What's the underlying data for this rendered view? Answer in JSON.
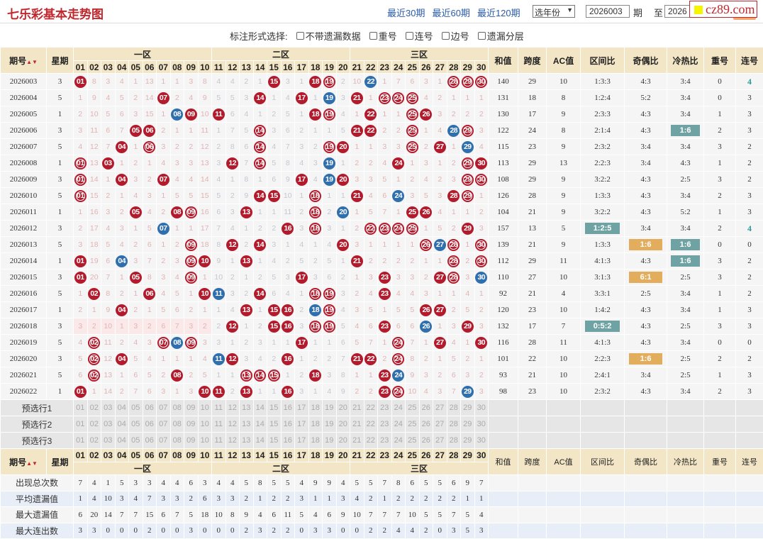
{
  "header": {
    "title": "七乐彩基本走势图",
    "links": [
      "最近30期",
      "最近60期",
      "最近120期"
    ],
    "year_select": "选年份",
    "from_value": "2026003",
    "from_suffix": "期",
    "to_label": "至",
    "to_value": "2026",
    "watermark": "cz89.com"
  },
  "options": {
    "label": "标注形式选择:",
    "items": [
      "不带遗漏数据",
      "重号",
      "连号",
      "边号",
      "遗漏分层"
    ]
  },
  "columns": {
    "period": "期号",
    "week": "星期",
    "zones": [
      "一区",
      "二区",
      "三区"
    ],
    "numbers": [
      "01",
      "02",
      "03",
      "04",
      "05",
      "06",
      "07",
      "08",
      "09",
      "10",
      "11",
      "12",
      "13",
      "14",
      "15",
      "16",
      "17",
      "18",
      "19",
      "20",
      "21",
      "22",
      "23",
      "24",
      "25",
      "26",
      "27",
      "28",
      "29",
      "30"
    ],
    "stats": [
      "和值",
      "跨度",
      "AC值",
      "区间比",
      "奇偶比",
      "冷热比",
      "重号",
      "连号"
    ]
  },
  "colors": {
    "red_ball": "#b31b2c",
    "blue_ball": "#2f6fae",
    "teal_highlight": "#6fa3a3",
    "orange_highlight": "#e3ad5e",
    "header_bg": "#f3e6c6"
  },
  "rows": [
    {
      "period": "2026003",
      "week": "3",
      "cells": [
        "r01",
        "8",
        "3",
        "4",
        "1",
        "13",
        "1",
        "1",
        "3",
        "8",
        "4",
        "4",
        "2",
        "1",
        "r15",
        "3",
        "1",
        "r18",
        "o19",
        "2",
        "10",
        "b22",
        "1",
        "7",
        "6",
        "3",
        "1",
        "o28",
        "o29",
        "o30"
      ],
      "stats": [
        "140",
        "29",
        "10",
        "1:3:3",
        "4:3",
        "3:4",
        "0",
        "4"
      ],
      "hl": {
        "7": "tealtxt"
      }
    },
    {
      "period": "2026004",
      "week": "5",
      "cells": [
        "1",
        "9",
        "4",
        "5",
        "2",
        "14",
        "r07",
        "2",
        "4",
        "9",
        "5",
        "5",
        "3",
        "r14",
        "1",
        "4",
        "r17",
        "1",
        "b19",
        "3",
        "r21",
        "1",
        "o23",
        "o24",
        "o25",
        "4",
        "2",
        "1",
        "1",
        "1"
      ],
      "stats": [
        "131",
        "18",
        "8",
        "1:2:4",
        "5:2",
        "3:4",
        "0",
        "3"
      ]
    },
    {
      "period": "2026005",
      "week": "1",
      "cells": [
        "2",
        "10",
        "5",
        "6",
        "3",
        "15",
        "1",
        "b08",
        "r09",
        "10",
        "r11",
        "6",
        "4",
        "1",
        "2",
        "5",
        "1",
        "r18",
        "o19",
        "4",
        "1",
        "r22",
        "1",
        "1",
        "o25",
        "r26",
        "3",
        "2",
        "2",
        "2"
      ],
      "stats": [
        "130",
        "17",
        "9",
        "2:3:3",
        "4:3",
        "3:4",
        "1",
        "3"
      ]
    },
    {
      "period": "2026006",
      "week": "3",
      "cells": [
        "3",
        "11",
        "6",
        "7",
        "r05",
        "r06",
        "2",
        "1",
        "1",
        "11",
        "1",
        "7",
        "5",
        "o14",
        "3",
        "6",
        "2",
        "1",
        "1",
        "5",
        "r21",
        "r22",
        "2",
        "2",
        "o25",
        "1",
        "4",
        "b28",
        "o29",
        "3"
      ],
      "stats": [
        "122",
        "24",
        "8",
        "2:1:4",
        "4:3",
        "1:6",
        "2",
        "3"
      ],
      "hl": {
        "5": "teal"
      }
    },
    {
      "period": "2026007",
      "week": "5",
      "cells": [
        "4",
        "12",
        "7",
        "r04",
        "1",
        "o06",
        "3",
        "2",
        "2",
        "12",
        "2",
        "8",
        "6",
        "o14",
        "4",
        "7",
        "3",
        "2",
        "o19",
        "r20",
        "1",
        "1",
        "3",
        "3",
        "o25",
        "2",
        "r27",
        "1",
        "b29",
        "4"
      ],
      "stats": [
        "115",
        "23",
        "9",
        "2:3:2",
        "3:4",
        "3:4",
        "3",
        "2"
      ]
    },
    {
      "period": "2026008",
      "week": "1",
      "cells": [
        "o01",
        "13",
        "r03",
        "1",
        "2",
        "1",
        "4",
        "3",
        "3",
        "13",
        "3",
        "r12",
        "7",
        "o14",
        "5",
        "8",
        "4",
        "3",
        "b19",
        "1",
        "2",
        "2",
        "4",
        "r24",
        "1",
        "3",
        "1",
        "2",
        "o29",
        "r30"
      ],
      "stats": [
        "113",
        "29",
        "13",
        "2:2:3",
        "3:4",
        "4:3",
        "1",
        "2"
      ]
    },
    {
      "period": "2026009",
      "week": "3",
      "cells": [
        "o01",
        "14",
        "1",
        "r04",
        "3",
        "2",
        "r07",
        "4",
        "4",
        "14",
        "4",
        "1",
        "8",
        "1",
        "6",
        "9",
        "r17",
        "4",
        "b19",
        "r20",
        "3",
        "3",
        "5",
        "1",
        "2",
        "4",
        "2",
        "3",
        "o29",
        "o30"
      ],
      "stats": [
        "108",
        "29",
        "9",
        "3:2:2",
        "4:3",
        "2:5",
        "3",
        "2"
      ]
    },
    {
      "period": "2026010",
      "week": "5",
      "cells": [
        "o01",
        "15",
        "2",
        "1",
        "4",
        "3",
        "1",
        "5",
        "5",
        "15",
        "5",
        "2",
        "9",
        "r14",
        "r15",
        "10",
        "1",
        "o18",
        "1",
        "1",
        "r21",
        "4",
        "6",
        "b24",
        "3",
        "5",
        "3",
        "r28",
        "o29",
        "1"
      ],
      "stats": [
        "126",
        "28",
        "9",
        "1:3:3",
        "4:3",
        "3:4",
        "2",
        "3"
      ]
    },
    {
      "period": "2026011",
      "week": "1",
      "cells": [
        "1",
        "16",
        "3",
        "2",
        "r05",
        "4",
        "2",
        "r08",
        "o09",
        "16",
        "6",
        "3",
        "r13",
        "1",
        "1",
        "11",
        "2",
        "o18",
        "2",
        "b20",
        "1",
        "5",
        "7",
        "1",
        "r25",
        "r26",
        "4",
        "1",
        "1",
        "2"
      ],
      "stats": [
        "104",
        "21",
        "9",
        "3:2:2",
        "4:3",
        "5:2",
        "1",
        "3"
      ]
    },
    {
      "period": "2026012",
      "week": "3",
      "cells": [
        "2",
        "17",
        "4",
        "3",
        "1",
        "5",
        "b07",
        "1",
        "1",
        "17",
        "7",
        "4",
        "1",
        "2",
        "2",
        "r16",
        "3",
        "o18",
        "3",
        "1",
        "2",
        "o22",
        "o23",
        "o24",
        "o25",
        "1",
        "5",
        "2",
        "r29",
        "3"
      ],
      "stats": [
        "157",
        "13",
        "5",
        "1:2:5",
        "3:4",
        "3:4",
        "2",
        "4"
      ],
      "hl": {
        "3": "teal",
        "7": "tealtxt"
      }
    },
    {
      "period": "2026013",
      "week": "5",
      "cells": [
        "3",
        "18",
        "5",
        "4",
        "2",
        "6",
        "1",
        "2",
        "o09",
        "18",
        "8",
        "r12",
        "2",
        "r14",
        "3",
        "1",
        "4",
        "1",
        "4",
        "r20",
        "3",
        "1",
        "1",
        "1",
        "1",
        "o26",
        "b27",
        "o28",
        "1",
        "o30"
      ],
      "stats": [
        "139",
        "21",
        "9",
        "1:3:3",
        "1:6",
        "1:6",
        "0",
        "0"
      ],
      "hl": {
        "4": "orange",
        "5": "teal"
      }
    },
    {
      "period": "2026014",
      "week": "1",
      "cells": [
        "r01",
        "19",
        "6",
        "b04",
        "3",
        "7",
        "2",
        "3",
        "o09",
        "r10",
        "9",
        "1",
        "r13",
        "1",
        "4",
        "2",
        "5",
        "2",
        "5",
        "1",
        "r21",
        "2",
        "2",
        "2",
        "2",
        "1",
        "1",
        "o28",
        "2",
        "o30"
      ],
      "stats": [
        "112",
        "29",
        "11",
        "4:1:3",
        "4:3",
        "1:6",
        "3",
        "2"
      ],
      "hl": {
        "5": "teal"
      }
    },
    {
      "period": "2026015",
      "week": "3",
      "cells": [
        "r01",
        "20",
        "7",
        "1",
        "r05",
        "8",
        "3",
        "4",
        "o09",
        "1",
        "10",
        "2",
        "1",
        "2",
        "5",
        "3",
        "r17",
        "3",
        "6",
        "2",
        "1",
        "3",
        "r23",
        "3",
        "3",
        "2",
        "r27",
        "o28",
        "3",
        "b30"
      ],
      "stats": [
        "110",
        "27",
        "10",
        "3:1:3",
        "6:1",
        "2:5",
        "3",
        "2"
      ],
      "hl": {
        "4": "orange"
      }
    },
    {
      "period": "2026016",
      "week": "5",
      "cells": [
        "1",
        "r02",
        "8",
        "2",
        "1",
        "r06",
        "4",
        "5",
        "1",
        "r10",
        "b11",
        "3",
        "2",
        "r14",
        "6",
        "4",
        "1",
        "o18",
        "o19",
        "3",
        "2",
        "4",
        "r23",
        "4",
        "4",
        "3",
        "1",
        "1",
        "4",
        "1"
      ],
      "stats": [
        "92",
        "21",
        "4",
        "3:3:1",
        "2:5",
        "3:4",
        "1",
        "2"
      ]
    },
    {
      "period": "2026017",
      "week": "1",
      "cells": [
        "2",
        "1",
        "9",
        "r04",
        "2",
        "1",
        "5",
        "6",
        "2",
        "1",
        "1",
        "4",
        "r13",
        "1",
        "r15",
        "r16",
        "2",
        "b18",
        "o19",
        "4",
        "3",
        "5",
        "1",
        "5",
        "5",
        "r26",
        "r27",
        "2",
        "5",
        "2"
      ],
      "stats": [
        "120",
        "23",
        "10",
        "1:4:2",
        "4:3",
        "3:4",
        "1",
        "3"
      ]
    },
    {
      "period": "2026018",
      "week": "3",
      "zone1_shaded": true,
      "cells": [
        "3",
        "2",
        "10",
        "1",
        "3",
        "2",
        "6",
        "7",
        "3",
        "2",
        "2",
        "r12",
        "1",
        "2",
        "r15",
        "r16",
        "3",
        "o18",
        "o19",
        "5",
        "4",
        "6",
        "r23",
        "6",
        "6",
        "b26",
        "1",
        "3",
        "r29",
        "3"
      ],
      "stats": [
        "132",
        "17",
        "7",
        "0:5:2",
        "4:3",
        "2:5",
        "3",
        "3"
      ],
      "hl": {
        "3": "teal"
      }
    },
    {
      "period": "2026019",
      "week": "5",
      "cells": [
        "4",
        "o02",
        "11",
        "2",
        "4",
        "3",
        "o07",
        "b08",
        "o09",
        "3",
        "3",
        "1",
        "2",
        "3",
        "1",
        "1",
        "r17",
        "1",
        "1",
        "6",
        "5",
        "7",
        "1",
        "o24",
        "7",
        "1",
        "r27",
        "4",
        "1",
        "r30"
      ],
      "stats": [
        "116",
        "28",
        "11",
        "4:1:3",
        "4:3",
        "3:4",
        "0",
        "0"
      ]
    },
    {
      "period": "2026020",
      "week": "3",
      "cells": [
        "5",
        "o02",
        "12",
        "r04",
        "5",
        "4",
        "1",
        "1",
        "1",
        "4",
        "b11",
        "r12",
        "3",
        "4",
        "2",
        "r16",
        "1",
        "2",
        "2",
        "7",
        "r21",
        "r22",
        "2",
        "o24",
        "8",
        "2",
        "1",
        "5",
        "2",
        "1"
      ],
      "stats": [
        "101",
        "22",
        "10",
        "2:2:3",
        "1:6",
        "2:5",
        "2",
        "2"
      ],
      "hl": {
        "4": "orange"
      }
    },
    {
      "period": "2026021",
      "week": "5",
      "cells": [
        "6",
        "o02",
        "13",
        "1",
        "6",
        "5",
        "2",
        "r08",
        "2",
        "5",
        "1",
        "1",
        "o13",
        "o14",
        "o15",
        "1",
        "2",
        "r18",
        "3",
        "8",
        "1",
        "1",
        "r23",
        "b24",
        "9",
        "3",
        "2",
        "6",
        "3",
        "2"
      ],
      "stats": [
        "93",
        "21",
        "10",
        "2:4:1",
        "3:4",
        "2:5",
        "1",
        "3"
      ]
    },
    {
      "period": "2026022",
      "week": "1",
      "cells": [
        "r01",
        "1",
        "14",
        "2",
        "7",
        "6",
        "3",
        "1",
        "3",
        "r10",
        "r11",
        "2",
        "r13",
        "1",
        "1",
        "r16",
        "3",
        "1",
        "4",
        "9",
        "2",
        "2",
        "r23",
        "o24",
        "10",
        "4",
        "3",
        "7",
        "b29",
        "3"
      ],
      "stats": [
        "98",
        "23",
        "10",
        "2:3:2",
        "4:3",
        "3:4",
        "2",
        "3"
      ]
    }
  ],
  "preselect": [
    "预选行1",
    "预选行2",
    "预选行3"
  ],
  "summary": [
    {
      "label": "出现总次数",
      "values": [
        "7",
        "4",
        "1",
        "5",
        "3",
        "3",
        "4",
        "4",
        "6",
        "3",
        "4",
        "4",
        "5",
        "8",
        "5",
        "5",
        "4",
        "9",
        "9",
        "4",
        "5",
        "5",
        "7",
        "8",
        "6",
        "5",
        "5",
        "6",
        "9",
        "7"
      ]
    },
    {
      "label": "平均遗漏值",
      "values": [
        "1",
        "4",
        "10",
        "3",
        "4",
        "7",
        "3",
        "3",
        "2",
        "6",
        "3",
        "3",
        "2",
        "1",
        "2",
        "2",
        "3",
        "1",
        "1",
        "3",
        "4",
        "2",
        "1",
        "2",
        "2",
        "2",
        "2",
        "2",
        "1",
        "1"
      ]
    },
    {
      "label": "最大遗漏值",
      "values": [
        "6",
        "20",
        "14",
        "7",
        "7",
        "15",
        "6",
        "7",
        "5",
        "18",
        "10",
        "8",
        "9",
        "4",
        "6",
        "11",
        "5",
        "4",
        "6",
        "9",
        "10",
        "7",
        "7",
        "7",
        "10",
        "5",
        "5",
        "7",
        "5",
        "4"
      ]
    },
    {
      "label": "最大连出数",
      "values": [
        "3",
        "3",
        "0",
        "0",
        "0",
        "2",
        "0",
        "0",
        "3",
        "0",
        "0",
        "0",
        "2",
        "3",
        "2",
        "2",
        "0",
        "3",
        "3",
        "0",
        "0",
        "2",
        "2",
        "4",
        "4",
        "2",
        "0",
        "3",
        "5",
        "3"
      ]
    }
  ]
}
